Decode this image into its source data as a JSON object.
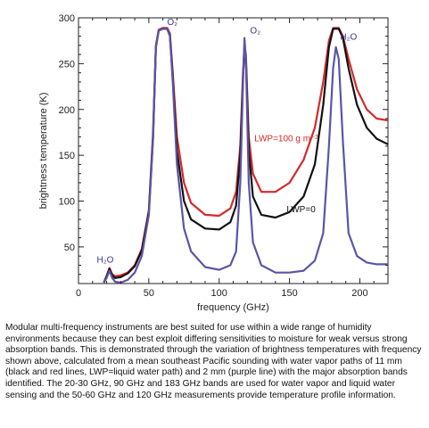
{
  "chart_data": {
    "type": "line",
    "xlabel": "frequency (GHz)",
    "ylabel": "brightness temperature (K)",
    "xlim": [
      0,
      220
    ],
    "ylim": [
      10,
      300
    ],
    "xticks": [
      0,
      50,
      100,
      150,
      200
    ],
    "yticks": [
      50,
      100,
      150,
      200,
      250,
      300
    ],
    "grid": false,
    "series": [
      {
        "name": "LWP=100 g m⁻²",
        "color": "#d42a2a",
        "points": [
          [
            18,
            11
          ],
          [
            20,
            18
          ],
          [
            22,
            27
          ],
          [
            24,
            20
          ],
          [
            26,
            18
          ],
          [
            30,
            19
          ],
          [
            35,
            22
          ],
          [
            40,
            30
          ],
          [
            45,
            48
          ],
          [
            50,
            90
          ],
          [
            53,
            175
          ],
          [
            55,
            270
          ],
          [
            57,
            287
          ],
          [
            60,
            289
          ],
          [
            63,
            289
          ],
          [
            65,
            283
          ],
          [
            67,
            240
          ],
          [
            70,
            170
          ],
          [
            75,
            120
          ],
          [
            80,
            98
          ],
          [
            90,
            85
          ],
          [
            100,
            84
          ],
          [
            108,
            92
          ],
          [
            112,
            110
          ],
          [
            115,
            160
          ],
          [
            117,
            240
          ],
          [
            118,
            270
          ],
          [
            119,
            260
          ],
          [
            121,
            170
          ],
          [
            124,
            130
          ],
          [
            130,
            110
          ],
          [
            140,
            110
          ],
          [
            150,
            120
          ],
          [
            160,
            145
          ],
          [
            168,
            180
          ],
          [
            174,
            230
          ],
          [
            178,
            275
          ],
          [
            181,
            289
          ],
          [
            185,
            289
          ],
          [
            188,
            280
          ],
          [
            192,
            255
          ],
          [
            198,
            222
          ],
          [
            205,
            200
          ],
          [
            212,
            190
          ],
          [
            220,
            188
          ]
        ]
      },
      {
        "name": "LWP=0",
        "color": "#111111",
        "points": [
          [
            18,
            11
          ],
          [
            20,
            18
          ],
          [
            22,
            26
          ],
          [
            24,
            19
          ],
          [
            26,
            16
          ],
          [
            30,
            17
          ],
          [
            35,
            21
          ],
          [
            40,
            29
          ],
          [
            45,
            46
          ],
          [
            50,
            88
          ],
          [
            53,
            170
          ],
          [
            55,
            268
          ],
          [
            57,
            286
          ],
          [
            60,
            288
          ],
          [
            63,
            288
          ],
          [
            65,
            281
          ],
          [
            67,
            235
          ],
          [
            70,
            155
          ],
          [
            75,
            100
          ],
          [
            80,
            80
          ],
          [
            90,
            70
          ],
          [
            100,
            69
          ],
          [
            108,
            77
          ],
          [
            112,
            95
          ],
          [
            115,
            150
          ],
          [
            117,
            235
          ],
          [
            118,
            268
          ],
          [
            119,
            255
          ],
          [
            121,
            155
          ],
          [
            124,
            105
          ],
          [
            130,
            85
          ],
          [
            140,
            82
          ],
          [
            150,
            88
          ],
          [
            160,
            105
          ],
          [
            168,
            140
          ],
          [
            174,
            205
          ],
          [
            178,
            268
          ],
          [
            181,
            288
          ],
          [
            185,
            288
          ],
          [
            188,
            278
          ],
          [
            192,
            245
          ],
          [
            198,
            205
          ],
          [
            205,
            180
          ],
          [
            212,
            168
          ],
          [
            220,
            162
          ]
        ]
      },
      {
        "name": "",
        "color": "#5a55a8",
        "points": [
          [
            18,
            11
          ],
          [
            20,
            16
          ],
          [
            22,
            24
          ],
          [
            24,
            16
          ],
          [
            26,
            12
          ],
          [
            30,
            11
          ],
          [
            35,
            14
          ],
          [
            40,
            22
          ],
          [
            45,
            40
          ],
          [
            50,
            85
          ],
          [
            53,
            168
          ],
          [
            55,
            268
          ],
          [
            57,
            286
          ],
          [
            60,
            288
          ],
          [
            63,
            288
          ],
          [
            65,
            280
          ],
          [
            67,
            230
          ],
          [
            70,
            140
          ],
          [
            75,
            70
          ],
          [
            80,
            45
          ],
          [
            90,
            28
          ],
          [
            100,
            25
          ],
          [
            108,
            30
          ],
          [
            112,
            45
          ],
          [
            115,
            120
          ],
          [
            117,
            230
          ],
          [
            118,
            278
          ],
          [
            119,
            255
          ],
          [
            121,
            120
          ],
          [
            124,
            55
          ],
          [
            130,
            30
          ],
          [
            140,
            22
          ],
          [
            150,
            22
          ],
          [
            160,
            24
          ],
          [
            168,
            35
          ],
          [
            174,
            65
          ],
          [
            178,
            160
          ],
          [
            181,
            245
          ],
          [
            183,
            268
          ],
          [
            185,
            255
          ],
          [
            188,
            165
          ],
          [
            192,
            65
          ],
          [
            198,
            40
          ],
          [
            205,
            33
          ],
          [
            212,
            31
          ],
          [
            220,
            31
          ]
        ]
      }
    ],
    "annotations": [
      {
        "text": "O₂",
        "x": 63,
        "y": 292,
        "color": "#3a3590"
      },
      {
        "text": "O₂",
        "x": 122,
        "y": 283,
        "color": "#3a3590"
      },
      {
        "text": "H₂O",
        "x": 186,
        "y": 276,
        "color": "#3a3590"
      },
      {
        "text": "H₂O",
        "x": 13,
        "y": 33,
        "color": "#3a3590"
      },
      {
        "text": "LWP=100 g m⁻²",
        "x": 125,
        "y": 165,
        "color": "#d42a2a"
      },
      {
        "text": "LWP=0",
        "x": 148,
        "y": 88,
        "color": "#111111"
      }
    ]
  },
  "caption": "Modular multi-frequency instruments are best suited for use within a wide range of humidity environments because they can best exploit differing sensitivities to moisture for weak versus strong absorption bands. This is demonstrated through the variation of brightness temperatures with frequency shown above, calculated from a mean southeast Pacific sounding with water vapor paths of 11 mm (black and red lines, LWP=liquid water path) and 2 mm (purple line) with the major absorption bands identified. The  20-30 GHz, 90 GHz and 183 GHz bands are used for water vapor and liquid water sensing and the 50-60 GHz and 120 GHz measurements provide temperature profile information."
}
